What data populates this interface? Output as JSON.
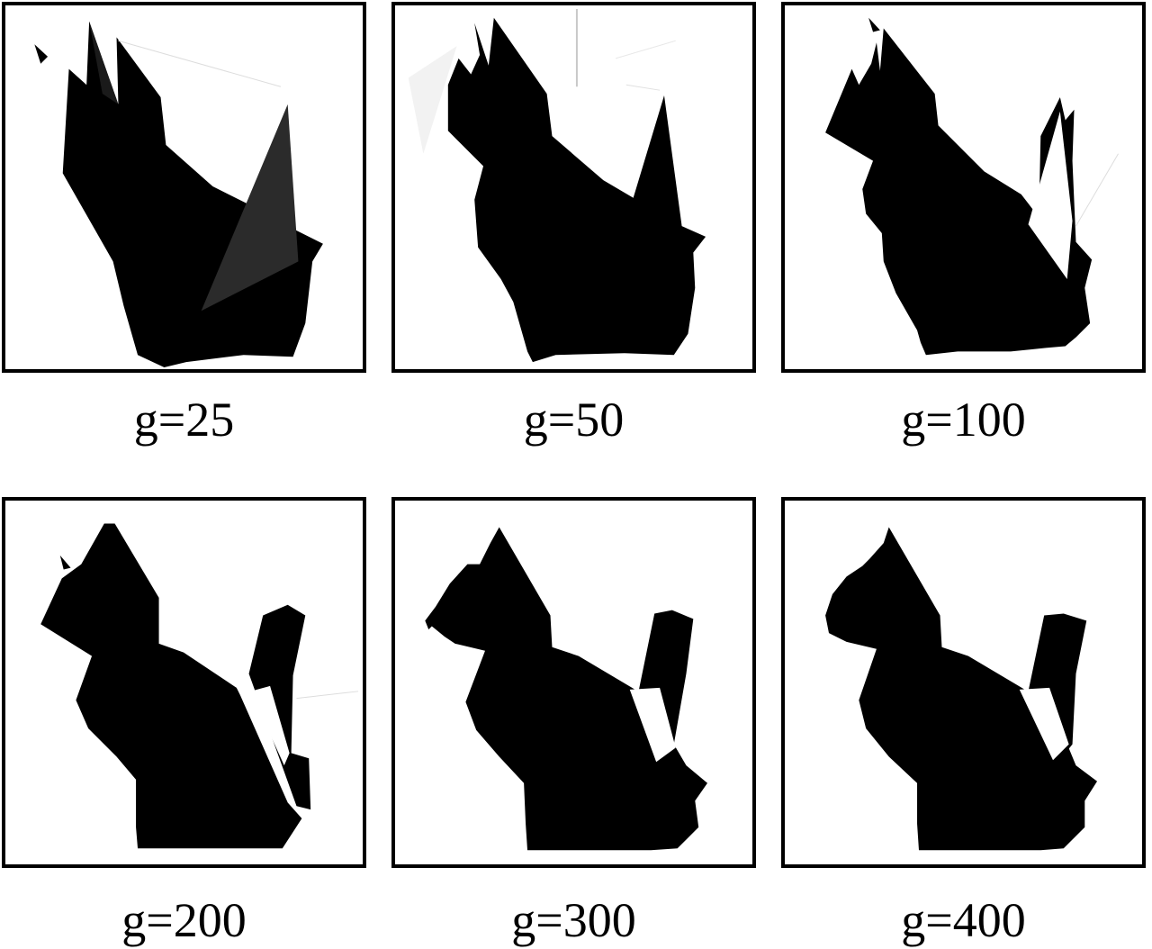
{
  "panels": [
    {
      "label": "g=25",
      "generations": 25
    },
    {
      "label": "g=50",
      "generations": 50
    },
    {
      "label": "g=100",
      "generations": 100
    },
    {
      "label": "g=200",
      "generations": 200
    },
    {
      "label": "g=300",
      "generations": 300
    },
    {
      "label": "g=400",
      "generations": 400
    }
  ],
  "colors": {
    "shape": "#000000",
    "background": "#ffffff",
    "frame": "#000000"
  }
}
